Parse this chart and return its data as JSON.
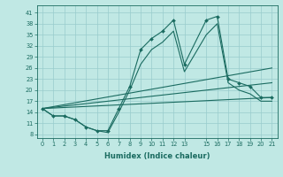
{
  "xlabel": "Humidex (Indice chaleur)",
  "bg_color": "#c0e8e4",
  "grid_color": "#98cccc",
  "line_color": "#1a6b60",
  "xlim": [
    -0.5,
    21.5
  ],
  "ylim": [
    7,
    43
  ],
  "xticks": [
    0,
    1,
    2,
    3,
    4,
    5,
    6,
    7,
    8,
    9,
    10,
    11,
    12,
    13,
    15,
    16,
    17,
    18,
    19,
    20,
    21
  ],
  "yticks": [
    8,
    11,
    14,
    17,
    20,
    23,
    26,
    29,
    32,
    35,
    38,
    41
  ],
  "lines": [
    {
      "x": [
        0,
        1,
        2,
        3,
        4,
        5,
        6,
        7,
        8,
        9,
        10,
        11,
        12,
        13,
        15,
        16,
        17,
        18,
        19,
        20,
        21
      ],
      "y": [
        15,
        13,
        13,
        12,
        10,
        9,
        9,
        15,
        21,
        31,
        34,
        36,
        39,
        27,
        39,
        40,
        23,
        22,
        21,
        18,
        18
      ],
      "marker": true
    },
    {
      "x": [
        0,
        1,
        2,
        3,
        4,
        5,
        6,
        7,
        8,
        9,
        10,
        11,
        12,
        13,
        15,
        16,
        17,
        18,
        19,
        20,
        21
      ],
      "y": [
        15,
        13,
        13,
        12,
        10,
        9,
        8.5,
        14,
        20,
        27,
        31,
        33,
        36,
        25,
        35,
        38,
        22,
        20,
        19,
        17,
        17
      ],
      "marker": false
    },
    {
      "x": [
        0,
        21
      ],
      "y": [
        15,
        18
      ],
      "marker": false
    },
    {
      "x": [
        0,
        21
      ],
      "y": [
        15,
        22
      ],
      "marker": false
    },
    {
      "x": [
        0,
        21
      ],
      "y": [
        15,
        26
      ],
      "marker": false
    }
  ]
}
